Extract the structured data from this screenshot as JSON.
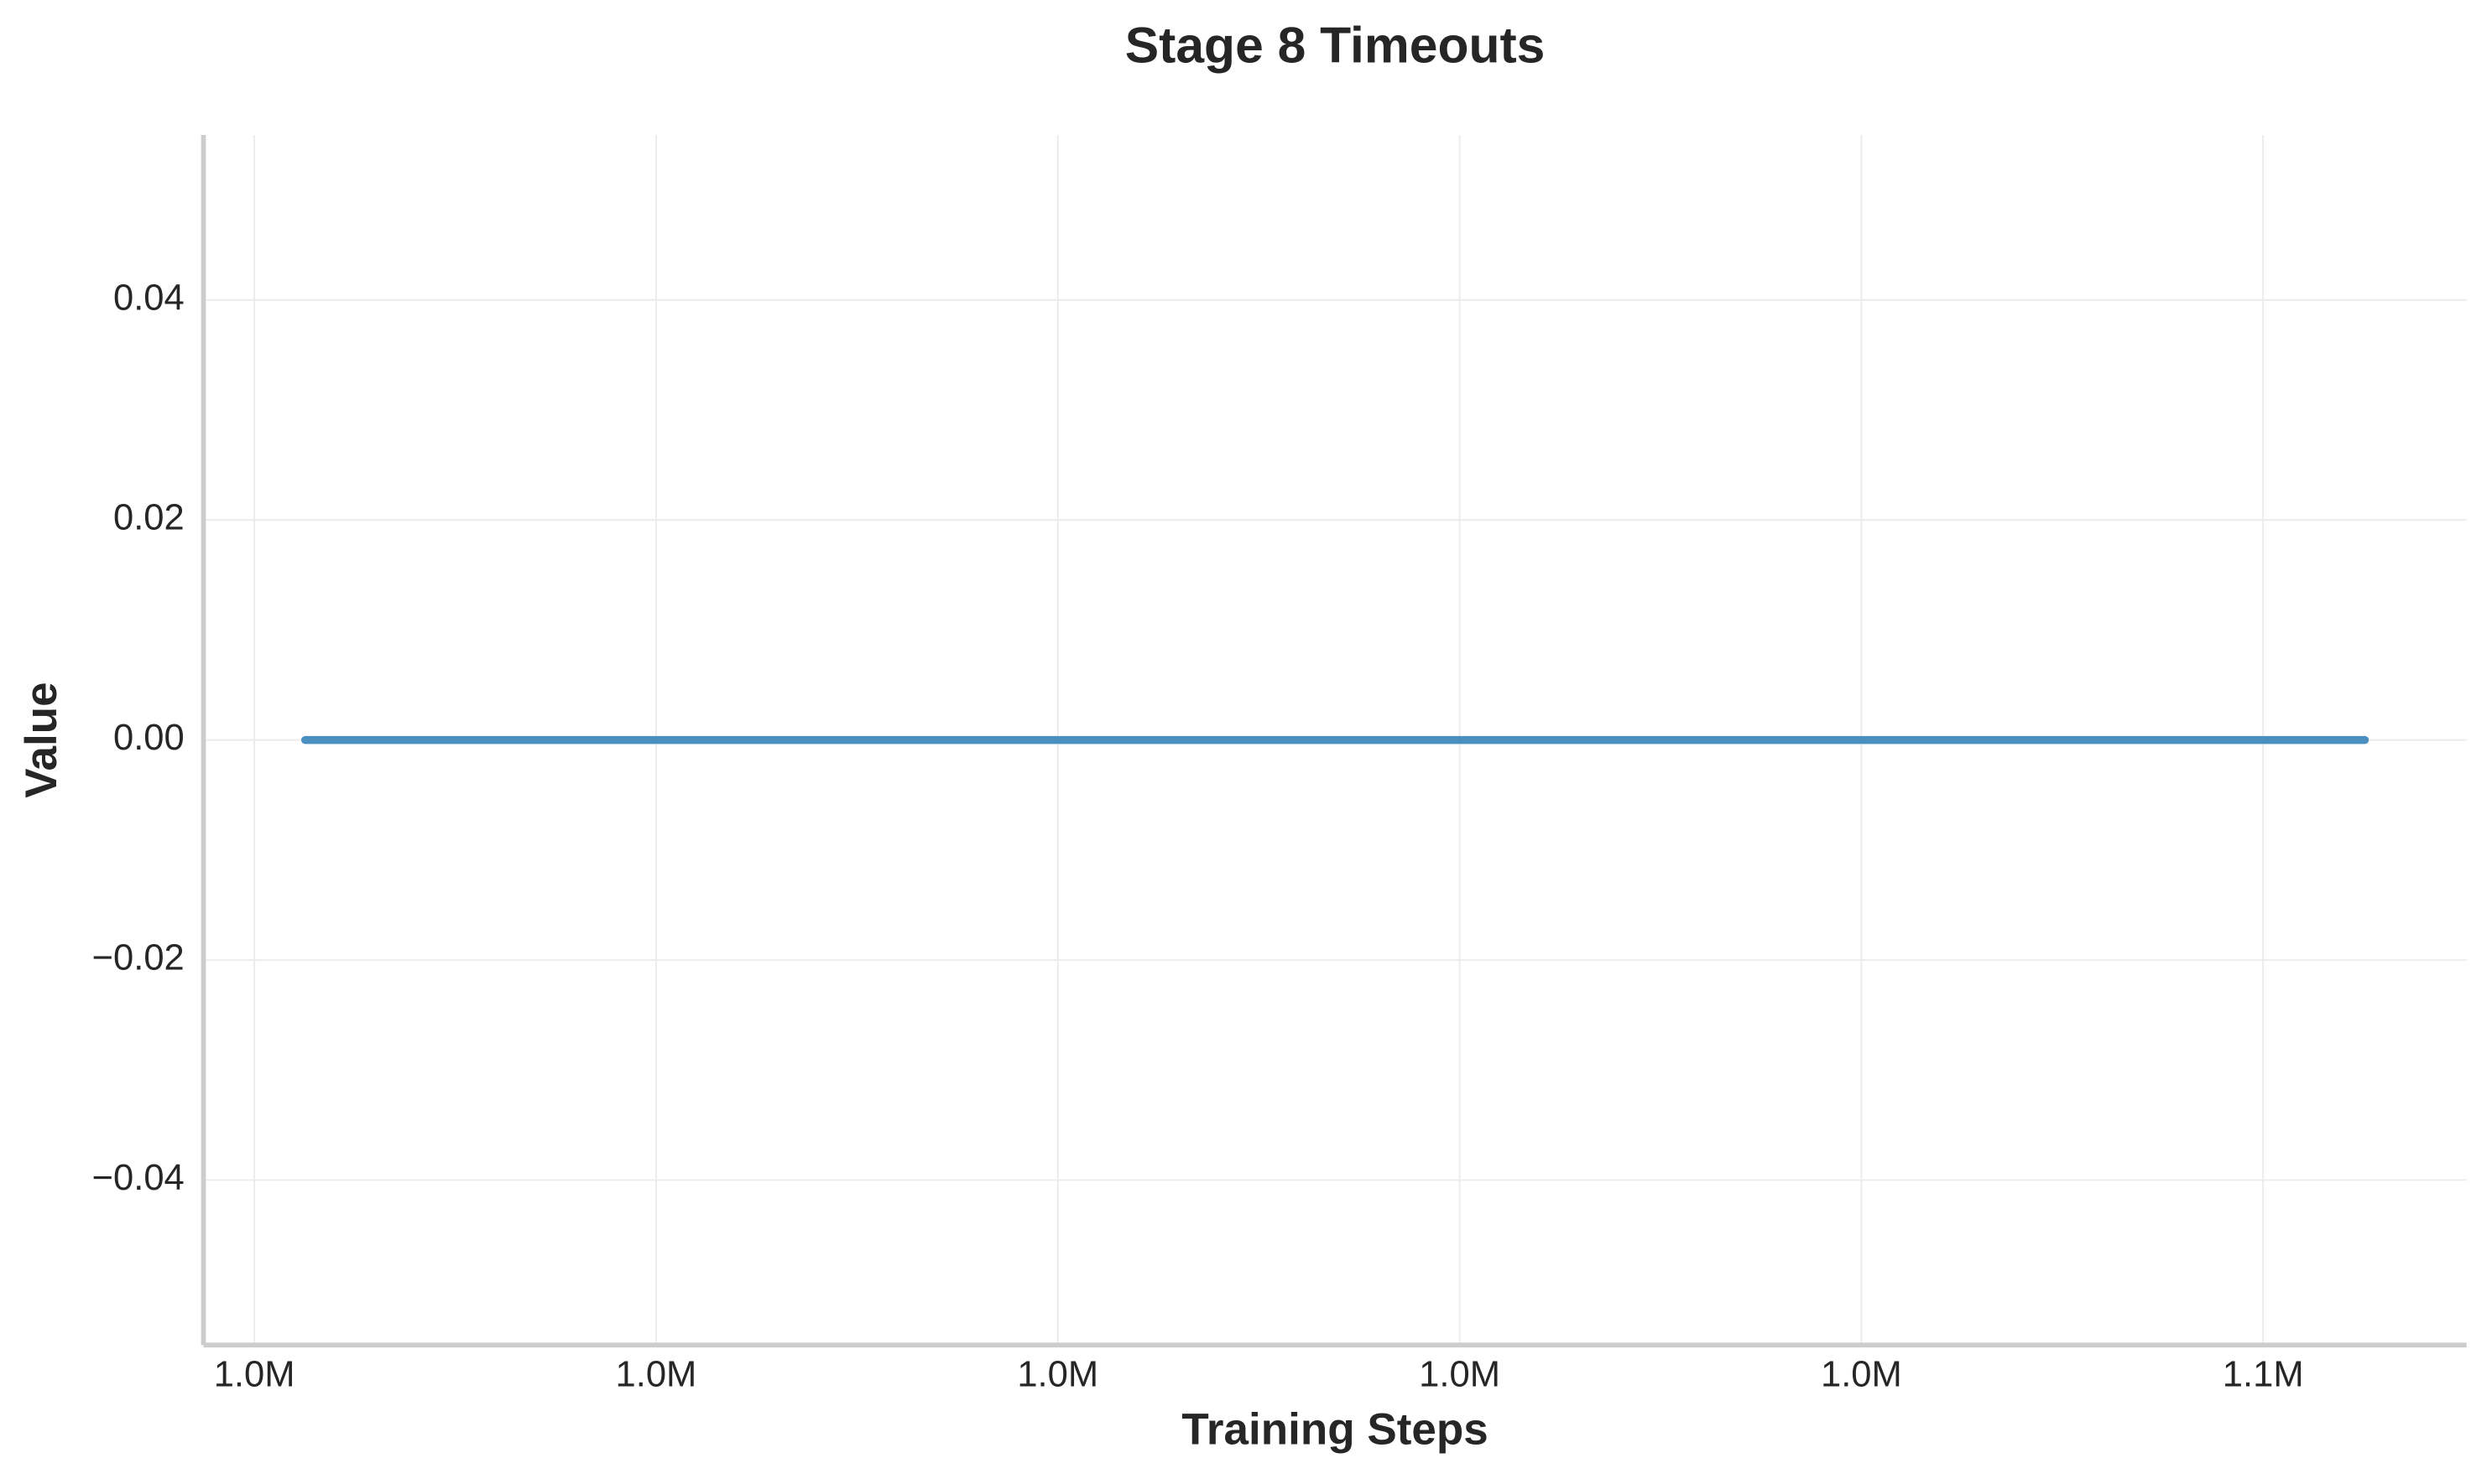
{
  "chart_data": {
    "type": "line",
    "title": "Stage 8 Timeouts",
    "x_label": "Training Steps",
    "y_label": "Value",
    "x": [
      1001266,
      1052532
    ],
    "series": [
      {
        "name": "Stage 8 Timeouts",
        "color": "#4a8fc0",
        "values": [
          0,
          0
        ]
      }
    ],
    "xlim": [
      998734,
      1055063
    ],
    "xticks": [
      {
        "value": 1000000,
        "label": "1.0M"
      },
      {
        "value": 1010000,
        "label": "1.0M"
      },
      {
        "value": 1020000,
        "label": "1.0M"
      },
      {
        "value": 1030000,
        "label": "1.0M"
      },
      {
        "value": 1040000,
        "label": "1.0M"
      },
      {
        "value": 1050000,
        "label": "1.1M"
      }
    ],
    "ylim": [
      -0.055,
      0.055
    ],
    "yticks": [
      {
        "value": -0.04,
        "label": "−0.04"
      },
      {
        "value": -0.02,
        "label": "−0.02"
      },
      {
        "value": 0,
        "label": "0.00"
      },
      0.02,
      0.04
    ],
    "grid": true
  }
}
